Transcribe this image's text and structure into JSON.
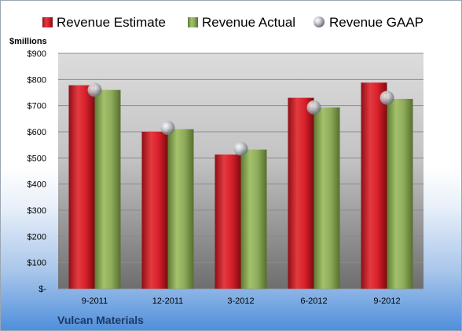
{
  "chart_data": {
    "type": "bar",
    "unit_label": "$millions",
    "company": "Vulcan Materials",
    "categories": [
      "9-2011",
      "12-2011",
      "3-2012",
      "6-2012",
      "9-2012"
    ],
    "series": [
      {
        "name": "Revenue Estimate",
        "kind": "bar",
        "color": "#d7202a",
        "values": [
          778,
          600,
          513,
          730,
          788
        ]
      },
      {
        "name": "Revenue Actual",
        "kind": "bar",
        "color": "#8dab5a",
        "values": [
          760,
          610,
          532,
          693,
          726
        ]
      },
      {
        "name": "Revenue GAAP",
        "kind": "marker",
        "color": "#b8bcc2",
        "values": [
          760,
          615,
          535,
          693,
          730
        ]
      }
    ],
    "y_ticks": [
      0,
      100,
      200,
      300,
      400,
      500,
      600,
      700,
      800,
      900
    ],
    "y_tick_labels": [
      "$-",
      "$100",
      "$200",
      "$300",
      "$400",
      "$500",
      "$600",
      "$700",
      "$800",
      "$900"
    ],
    "ylim": [
      0,
      900
    ],
    "grid": true,
    "legend_position": "top"
  }
}
